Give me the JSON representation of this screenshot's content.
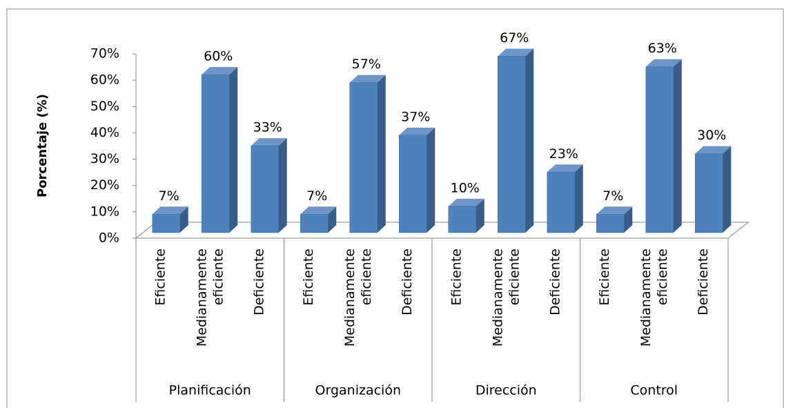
{
  "chart_data": {
    "type": "bar3d",
    "y_axis_label": "Porcentaje (%)",
    "categories": [
      "Eficiente",
      "Medianamente eficiente",
      "Deficiente",
      "Eficiente",
      "Medianamente eficiente",
      "Deficiente",
      "Eficiente",
      "Medianamente eficiente",
      "Deficiente",
      "Eficiente",
      "Medianamente eficiente",
      "Deficiente"
    ],
    "groups": [
      "Planificación",
      "Organización",
      "Dirección",
      "Control"
    ],
    "values": [
      7,
      60,
      33,
      7,
      57,
      37,
      10,
      67,
      23,
      7,
      63,
      30
    ],
    "value_labels": [
      "7%",
      "60%",
      "33%",
      "7%",
      "57%",
      "37%",
      "10%",
      "67%",
      "23%",
      "7%",
      "63%",
      "30%"
    ],
    "color": "#4f81bd",
    "ylim": [
      0,
      70
    ],
    "yticks": [
      {
        "value": 0,
        "label": "0%"
      },
      {
        "value": 10,
        "label": "10%"
      },
      {
        "value": 20,
        "label": "20%"
      },
      {
        "value": 30,
        "label": "30%"
      },
      {
        "value": 40,
        "label": "40%"
      },
      {
        "value": 50,
        "label": "50%"
      },
      {
        "value": 60,
        "label": "60%"
      },
      {
        "value": 70,
        "label": "70%"
      }
    ]
  }
}
